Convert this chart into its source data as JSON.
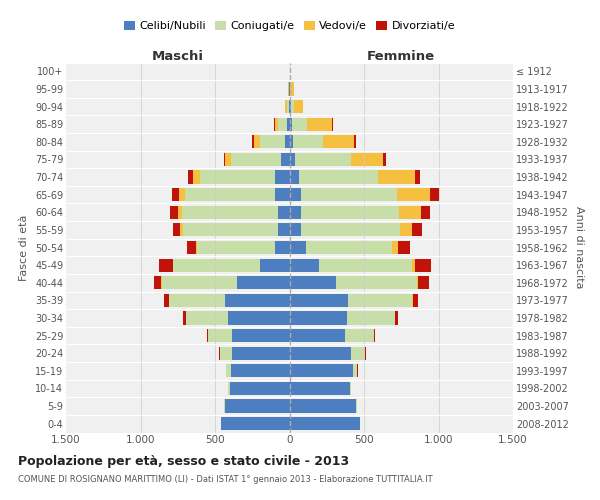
{
  "age_groups": [
    "0-4",
    "5-9",
    "10-14",
    "15-19",
    "20-24",
    "25-29",
    "30-34",
    "35-39",
    "40-44",
    "45-49",
    "50-54",
    "55-59",
    "60-64",
    "65-69",
    "70-74",
    "75-79",
    "80-84",
    "85-89",
    "90-94",
    "95-99",
    "100+"
  ],
  "birth_years": [
    "2008-2012",
    "2003-2007",
    "1998-2002",
    "1993-1997",
    "1988-1992",
    "1983-1987",
    "1978-1982",
    "1973-1977",
    "1968-1972",
    "1963-1967",
    "1958-1962",
    "1953-1957",
    "1948-1952",
    "1943-1947",
    "1938-1942",
    "1933-1937",
    "1928-1932",
    "1923-1927",
    "1918-1922",
    "1913-1917",
    "≤ 1912"
  ],
  "maschi": {
    "celibi": [
      460,
      435,
      400,
      395,
      385,
      385,
      415,
      430,
      355,
      200,
      100,
      75,
      80,
      100,
      100,
      60,
      30,
      15,
      5,
      2,
      0
    ],
    "coniugati": [
      2,
      5,
      10,
      30,
      80,
      160,
      280,
      380,
      500,
      580,
      520,
      640,
      640,
      600,
      500,
      330,
      170,
      60,
      15,
      3,
      0
    ],
    "vedovi": [
      0,
      0,
      0,
      0,
      0,
      2,
      2,
      2,
      5,
      5,
      10,
      20,
      30,
      40,
      50,
      40,
      40,
      25,
      10,
      2,
      0
    ],
    "divorziati": [
      0,
      0,
      0,
      2,
      5,
      10,
      20,
      30,
      50,
      90,
      60,
      50,
      50,
      50,
      30,
      10,
      10,
      5,
      0,
      0,
      0
    ]
  },
  "femmine": {
    "nubili": [
      470,
      445,
      405,
      425,
      415,
      375,
      385,
      395,
      315,
      200,
      110,
      80,
      75,
      80,
      65,
      40,
      25,
      15,
      8,
      2,
      0
    ],
    "coniugate": [
      3,
      5,
      10,
      30,
      90,
      190,
      320,
      430,
      540,
      620,
      580,
      660,
      660,
      640,
      530,
      370,
      200,
      100,
      25,
      5,
      0
    ],
    "vedove": [
      0,
      0,
      0,
      0,
      2,
      2,
      5,
      5,
      10,
      20,
      40,
      80,
      150,
      220,
      250,
      220,
      210,
      170,
      60,
      20,
      2
    ],
    "divorziate": [
      0,
      0,
      0,
      2,
      5,
      10,
      20,
      30,
      70,
      110,
      80,
      70,
      60,
      60,
      30,
      15,
      10,
      5,
      0,
      0,
      0
    ]
  },
  "colors": {
    "celibi": "#4d7ebf",
    "coniugati": "#c8dea8",
    "vedovi": "#f5c040",
    "divorziati": "#c0140a"
  },
  "xlim": 1500,
  "title": "Popolazione per età, sesso e stato civile - 2013",
  "subtitle": "COMUNE DI ROSIGNANO MARITTIMO (LI) - Dati ISTAT 1° gennaio 2013 - Elaborazione TUTTITALIA.IT",
  "xlabel_left": "Maschi",
  "xlabel_right": "Femmine",
  "ylabel_left": "Fasce di età",
  "ylabel_right": "Anni di nascita",
  "legend_labels": [
    "Celibi/Nubili",
    "Coniugati/e",
    "Vedovi/e",
    "Divorziati/e"
  ],
  "xticks": [
    -1500,
    -1000,
    -500,
    0,
    500,
    1000,
    1500
  ],
  "xtick_labels": [
    "1.500",
    "1.000",
    "500",
    "0",
    "500",
    "1.000",
    "1.500"
  ],
  "bg_color": "#f0f0f0",
  "bar_height": 0.75
}
